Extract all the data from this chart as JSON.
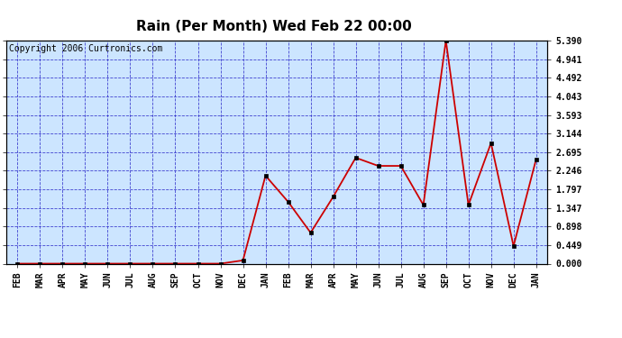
{
  "title": "Rain (Per Month) Wed Feb 22 00:00",
  "copyright": "Copyright 2006 Curtronics.com",
  "months": [
    "FEB",
    "MAR",
    "APR",
    "MAY",
    "JUN",
    "JUL",
    "AUG",
    "SEP",
    "OCT",
    "NOV",
    "DEC",
    "JAN",
    "FEB",
    "MAR",
    "APR",
    "MAY",
    "JUN",
    "JUL",
    "AUG",
    "SEP",
    "OCT",
    "NOV",
    "DEC",
    "JAN"
  ],
  "rain": [
    0.0,
    0.0,
    0.0,
    0.0,
    0.0,
    0.0,
    0.0,
    0.0,
    0.0,
    0.0,
    0.079,
    2.126,
    1.496,
    0.748,
    1.614,
    2.559,
    2.362,
    2.362,
    1.417,
    5.39,
    1.417,
    2.913,
    0.425,
    2.52
  ],
  "yticks": [
    0.0,
    0.449,
    0.898,
    1.347,
    1.797,
    2.246,
    2.695,
    3.144,
    3.593,
    4.043,
    4.492,
    4.941,
    5.39
  ],
  "ymax": 5.39,
  "line_color": "#cc0000",
  "marker_color": "#000000",
  "bg_color": "#cce5ff",
  "outer_bg": "#ffffff",
  "grid_color": "#3333cc",
  "border_color": "#000000",
  "title_fontsize": 11,
  "tick_fontsize": 7,
  "copyright_fontsize": 7
}
